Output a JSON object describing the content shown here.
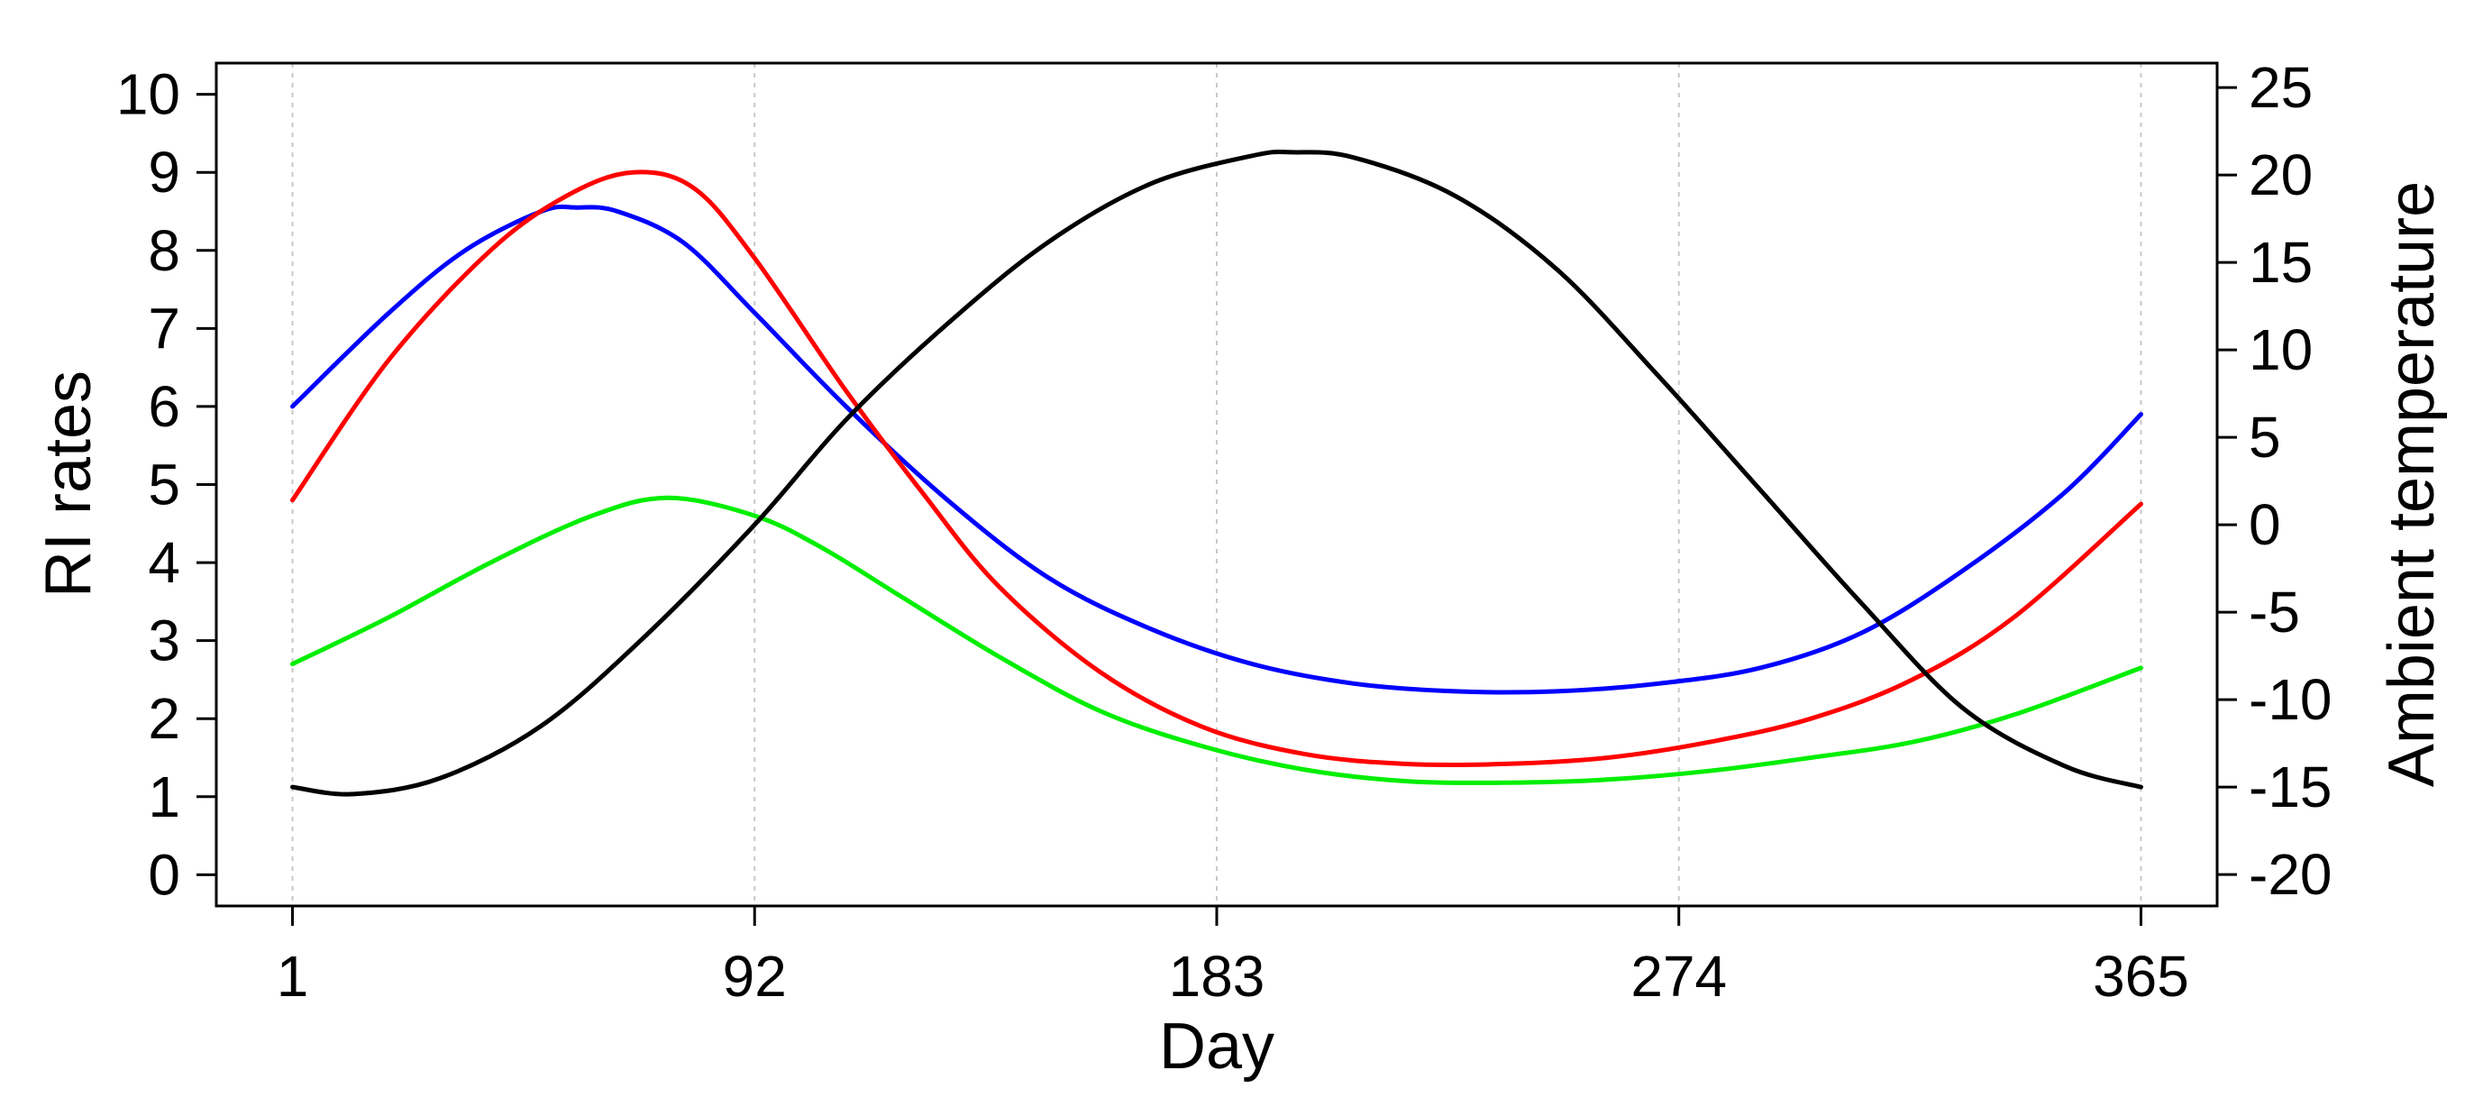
{
  "chart_data": {
    "type": "line",
    "title": "",
    "xlabel": "Day",
    "ylabel": "RI rates",
    "y2label": "Ambient temperature",
    "xlim": [
      -14,
      380
    ],
    "ylim": [
      -0.4,
      10.4
    ],
    "y2lim": [
      -21.8,
      26.4
    ],
    "x_ticks": [
      1,
      92,
      183,
      274,
      365
    ],
    "y_ticks": [
      0,
      1,
      2,
      3,
      4,
      5,
      6,
      7,
      8,
      9,
      10
    ],
    "y2_ticks": [
      -20,
      -15,
      -10,
      -5,
      0,
      5,
      10,
      15,
      20,
      25
    ],
    "grid": "vertical dotted lines at x ticks",
    "legend": "none",
    "series": [
      {
        "color": "#0000ff",
        "axis": "left",
        "x": [
          1,
          20,
          35,
          50,
          57,
          65,
          78,
          92,
          110,
          130,
          150,
          170,
          190,
          210,
          230,
          250,
          270,
          290,
          310,
          330,
          350,
          365
        ],
        "values": [
          6.0,
          7.2,
          8.0,
          8.5,
          8.55,
          8.5,
          8.1,
          7.2,
          6.0,
          4.8,
          3.8,
          3.15,
          2.7,
          2.45,
          2.35,
          2.35,
          2.45,
          2.65,
          3.1,
          3.9,
          4.9,
          5.9
        ]
      },
      {
        "color": "#ff0000",
        "axis": "left",
        "x": [
          1,
          20,
          40,
          55,
          68,
          80,
          92,
          110,
          125,
          140,
          160,
          180,
          200,
          220,
          240,
          260,
          280,
          300,
          320,
          340,
          365
        ],
        "values": [
          4.8,
          6.6,
          8.0,
          8.7,
          9.0,
          8.8,
          7.9,
          6.2,
          4.9,
          3.7,
          2.6,
          1.9,
          1.55,
          1.42,
          1.42,
          1.5,
          1.7,
          2.0,
          2.5,
          3.3,
          4.75
        ]
      },
      {
        "color": "#00ee00",
        "axis": "left",
        "x": [
          1,
          20,
          40,
          60,
          75,
          92,
          105,
          120,
          140,
          160,
          180,
          200,
          220,
          240,
          260,
          280,
          300,
          320,
          340,
          365
        ],
        "values": [
          2.7,
          3.3,
          4.0,
          4.6,
          4.83,
          4.6,
          4.2,
          3.6,
          2.8,
          2.1,
          1.65,
          1.35,
          1.2,
          1.18,
          1.22,
          1.33,
          1.5,
          1.7,
          2.05,
          2.65
        ]
      },
      {
        "color": "#000000",
        "axis": "right",
        "x": [
          1,
          13,
          30,
          50,
          70,
          92,
          110,
          130,
          150,
          170,
          190,
          198,
          210,
          230,
          250,
          270,
          290,
          310,
          330,
          350,
          365
        ],
        "values": [
          -15.0,
          -15.4,
          -14.5,
          -11.5,
          -6.5,
          0.0,
          6.0,
          11.5,
          16.2,
          19.5,
          21.1,
          21.3,
          21.0,
          18.8,
          14.6,
          8.5,
          2.0,
          -4.5,
          -10.5,
          -13.8,
          -15.0
        ]
      }
    ]
  }
}
